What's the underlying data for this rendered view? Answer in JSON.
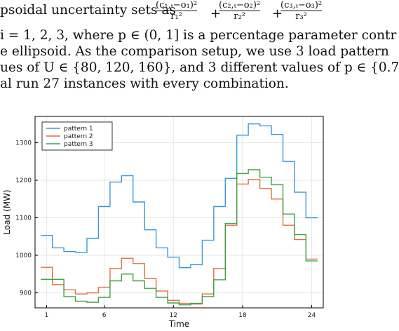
{
  "paper": {
    "line1": "psoidal uncertainty sets as",
    "formula": {
      "t1_num": "(c₁,ₜ−o₁)²",
      "t1_den": "r₁²",
      "t2_num": "(c₂,ₜ−o₂)²",
      "t2_den": "r₂²",
      "t3_num": "(c₃,ₜ−o₃)²",
      "t3_den": "r₃²",
      "plus": "+"
    },
    "line2": "i = 1, 2, 3, where p ∈ (0, 1] is a percentage parameter contr",
    "line3": "e ellipsoid. As the comparison setup, we use 3 load pattern",
    "line4": "ues of U ∈ {80, 120, 160}, and 3 different values of p ∈ {0.7",
    "line5": "al run 27 instances with every combination."
  },
  "chart_data": {
    "type": "line",
    "step": true,
    "xlabel": "Time",
    "ylabel": "Load (MW)",
    "x": [
      1,
      2,
      3,
      4,
      5,
      6,
      7,
      8,
      9,
      10,
      11,
      12,
      13,
      14,
      15,
      16,
      17,
      18,
      19,
      20,
      21,
      22,
      23,
      24
    ],
    "xticks": [
      1,
      6,
      12,
      18,
      24
    ],
    "yticks": [
      900,
      1000,
      1100,
      1200,
      1300
    ],
    "xlim": [
      0,
      25
    ],
    "ylim": [
      860,
      1370
    ],
    "grid": true,
    "legend_position": "top-left",
    "series": [
      {
        "name": "pattern 1",
        "color": "#3a9ad9",
        "values": [
          1053,
          1020,
          1010,
          1008,
          1045,
          1130,
          1195,
          1212,
          1142,
          1068,
          1020,
          995,
          967,
          975,
          1040,
          1130,
          1205,
          1320,
          1350,
          1345,
          1322,
          1250,
          1168,
          1100
        ]
      },
      {
        "name": "pattern 2",
        "color": "#e0703d",
        "values": [
          968,
          922,
          908,
          897,
          900,
          915,
          965,
          992,
          978,
          938,
          905,
          880,
          872,
          870,
          897,
          965,
          1080,
          1190,
          1202,
          1178,
          1150,
          1080,
          1042,
          990
        ]
      },
      {
        "name": "pattern 3",
        "color": "#3fa345",
        "values": [
          936,
          936,
          890,
          878,
          875,
          888,
          932,
          950,
          932,
          912,
          888,
          873,
          868,
          872,
          890,
          935,
          1085,
          1218,
          1228,
          1208,
          1188,
          1110,
          1055,
          985
        ]
      }
    ]
  }
}
